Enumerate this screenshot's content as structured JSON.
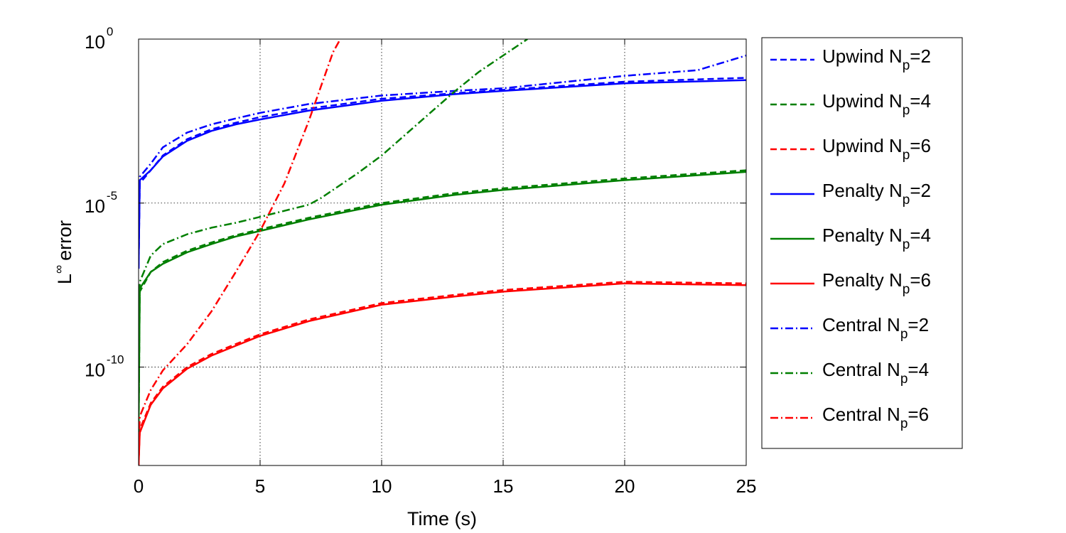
{
  "chart_data": {
    "type": "line",
    "xlabel": "Time (s)",
    "ylabel": "error",
    "ylabel_prefix": "L",
    "ylabel_sup": "∞",
    "xlim": [
      0,
      25
    ],
    "ylim_exponent": [
      -13,
      0
    ],
    "yscale": "log",
    "grid": true,
    "legend_position": "outside right",
    "x_ticks": [
      0,
      5,
      10,
      15,
      20,
      25
    ],
    "x_tick_labels": [
      "0",
      "5",
      "10",
      "15",
      "20",
      "25"
    ],
    "y_ticks_exponent": [
      0,
      -5,
      -10
    ],
    "y_tick_labels": [
      {
        "base": "10",
        "exp": "0"
      },
      {
        "base": "10",
        "exp": "-5"
      },
      {
        "base": "10",
        "exp": "-10"
      }
    ],
    "colors": {
      "blue": "#0000ff",
      "green": "#007f00",
      "red": "#ff0000"
    },
    "series": [
      {
        "name": "Upwind N",
        "sub": "p",
        "suffix": "=2",
        "color": "#0000ff",
        "style": "dashed",
        "log10_y": [
          [
            0,
            -7
          ],
          [
            0.05,
            -4.4
          ],
          [
            0.5,
            -4.0
          ],
          [
            1,
            -3.55
          ],
          [
            2,
            -3.05
          ],
          [
            3,
            -2.75
          ],
          [
            4,
            -2.55
          ],
          [
            5,
            -2.38
          ],
          [
            7,
            -2.12
          ],
          [
            10,
            -1.82
          ],
          [
            13,
            -1.65
          ],
          [
            15,
            -1.55
          ],
          [
            20,
            -1.3
          ],
          [
            25,
            -1.18
          ]
        ]
      },
      {
        "name": "Upwind N",
        "sub": "p",
        "suffix": "=4",
        "color": "#007f00",
        "style": "dashed",
        "log10_y": [
          [
            0,
            -12
          ],
          [
            0.05,
            -7.7
          ],
          [
            0.5,
            -7.1
          ],
          [
            1,
            -6.8
          ],
          [
            2,
            -6.45
          ],
          [
            3,
            -6.2
          ],
          [
            4,
            -5.98
          ],
          [
            5,
            -5.8
          ],
          [
            7,
            -5.45
          ],
          [
            10,
            -5.0
          ],
          [
            13,
            -4.7
          ],
          [
            15,
            -4.55
          ],
          [
            20,
            -4.25
          ],
          [
            25,
            -4.0
          ]
        ]
      },
      {
        "name": "Upwind N",
        "sub": "p",
        "suffix": "=6",
        "color": "#ff0000",
        "style": "dashed",
        "log10_y": [
          [
            0,
            -13
          ],
          [
            0.05,
            -11.9
          ],
          [
            0.5,
            -11.1
          ],
          [
            1,
            -10.6
          ],
          [
            2,
            -10.0
          ],
          [
            3,
            -9.6
          ],
          [
            4,
            -9.3
          ],
          [
            5,
            -9.0
          ],
          [
            7,
            -8.55
          ],
          [
            10,
            -8.05
          ],
          [
            13,
            -7.8
          ],
          [
            15,
            -7.65
          ],
          [
            20,
            -7.4
          ],
          [
            25,
            -7.45
          ]
        ]
      },
      {
        "name": "Penalty N",
        "sub": "p",
        "suffix": "=2",
        "color": "#0000ff",
        "style": "solid",
        "log10_y": [
          [
            0,
            -7
          ],
          [
            0.05,
            -4.3
          ],
          [
            0.5,
            -4.0
          ],
          [
            1,
            -3.58
          ],
          [
            2,
            -3.1
          ],
          [
            3,
            -2.8
          ],
          [
            4,
            -2.6
          ],
          [
            5,
            -2.45
          ],
          [
            7,
            -2.18
          ],
          [
            10,
            -1.88
          ],
          [
            13,
            -1.68
          ],
          [
            15,
            -1.58
          ],
          [
            20,
            -1.35
          ],
          [
            25,
            -1.25
          ]
        ]
      },
      {
        "name": "Penalty N",
        "sub": "p",
        "suffix": "=4",
        "color": "#007f00",
        "style": "solid",
        "log10_y": [
          [
            0,
            -12
          ],
          [
            0.05,
            -7.6
          ],
          [
            0.5,
            -7.1
          ],
          [
            1,
            -6.85
          ],
          [
            2,
            -6.5
          ],
          [
            3,
            -6.25
          ],
          [
            4,
            -6.02
          ],
          [
            5,
            -5.85
          ],
          [
            7,
            -5.5
          ],
          [
            10,
            -5.05
          ],
          [
            13,
            -4.75
          ],
          [
            15,
            -4.6
          ],
          [
            20,
            -4.3
          ],
          [
            25,
            -4.05
          ]
        ]
      },
      {
        "name": "Penalty N",
        "sub": "p",
        "suffix": "=6",
        "color": "#ff0000",
        "style": "solid",
        "log10_y": [
          [
            0,
            -13
          ],
          [
            0.05,
            -12
          ],
          [
            0.5,
            -11.15
          ],
          [
            1,
            -10.65
          ],
          [
            2,
            -10.05
          ],
          [
            3,
            -9.65
          ],
          [
            4,
            -9.35
          ],
          [
            5,
            -9.05
          ],
          [
            7,
            -8.6
          ],
          [
            10,
            -8.1
          ],
          [
            13,
            -7.85
          ],
          [
            15,
            -7.7
          ],
          [
            20,
            -7.45
          ],
          [
            25,
            -7.5
          ]
        ]
      },
      {
        "name": "Central N",
        "sub": "p",
        "suffix": "=2",
        "color": "#0000ff",
        "style": "dashdot",
        "log10_y": [
          [
            0,
            -6.8
          ],
          [
            0.05,
            -4.2
          ],
          [
            0.5,
            -3.8
          ],
          [
            1,
            -3.3
          ],
          [
            2,
            -2.85
          ],
          [
            3,
            -2.6
          ],
          [
            4,
            -2.42
          ],
          [
            5,
            -2.25
          ],
          [
            7,
            -1.98
          ],
          [
            10,
            -1.72
          ],
          [
            13,
            -1.58
          ],
          [
            15,
            -1.5
          ],
          [
            20,
            -1.12
          ],
          [
            23,
            -0.95
          ],
          [
            25,
            -0.5
          ]
        ]
      },
      {
        "name": "Central N",
        "sub": "p",
        "suffix": "=4",
        "color": "#007f00",
        "style": "dashdot",
        "log10_y": [
          [
            0,
            -11.8
          ],
          [
            0.05,
            -7.4
          ],
          [
            0.5,
            -6.6
          ],
          [
            1,
            -6.25
          ],
          [
            2,
            -5.95
          ],
          [
            3,
            -5.75
          ],
          [
            4,
            -5.6
          ],
          [
            5,
            -5.42
          ],
          [
            7,
            -5.05
          ],
          [
            7.5,
            -4.85
          ],
          [
            9,
            -4.1
          ],
          [
            10,
            -3.55
          ],
          [
            11,
            -2.9
          ],
          [
            13,
            -1.6
          ],
          [
            14,
            -1.0
          ],
          [
            15,
            -0.5
          ],
          [
            16,
            0
          ]
        ]
      },
      {
        "name": "Central N",
        "sub": "p",
        "suffix": "=6",
        "color": "#ff0000",
        "style": "dashdot",
        "log10_y": [
          [
            0,
            -12.8
          ],
          [
            0.05,
            -11.5
          ],
          [
            0.5,
            -10.7
          ],
          [
            1,
            -10.1
          ],
          [
            2,
            -9.3
          ],
          [
            3,
            -8.3
          ],
          [
            4,
            -7.1
          ],
          [
            5,
            -5.85
          ],
          [
            6,
            -4.4
          ],
          [
            7,
            -2.5
          ],
          [
            8,
            -0.4
          ],
          [
            8.3,
            0
          ]
        ]
      }
    ]
  }
}
